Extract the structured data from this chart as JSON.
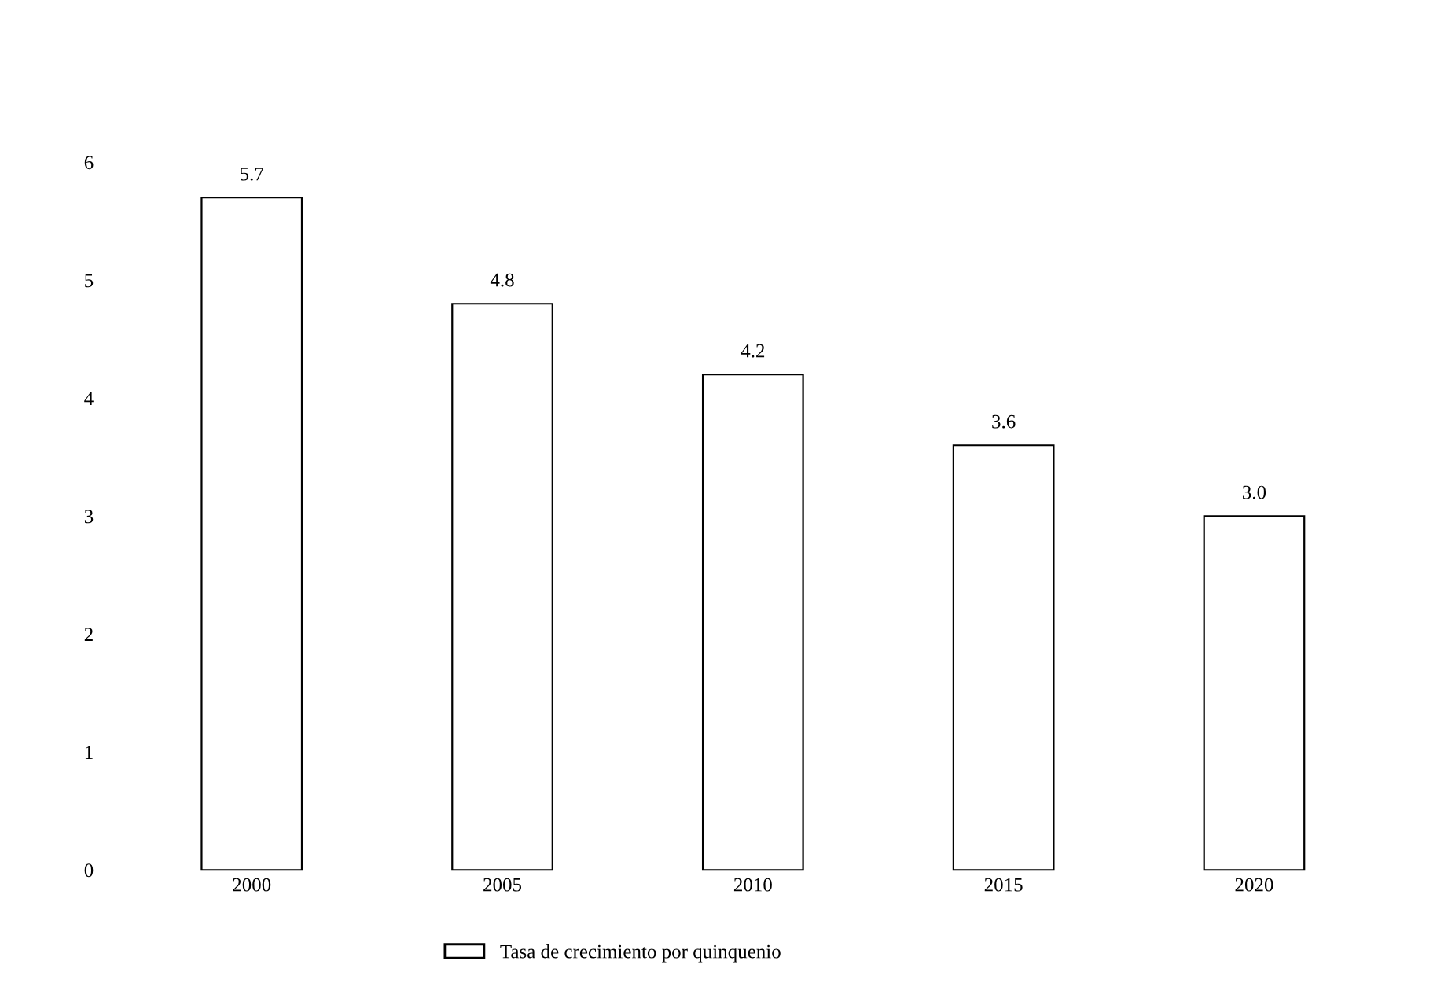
{
  "chart_data": {
    "type": "bar",
    "categories": [
      "2000",
      "2005",
      "2010",
      "2015",
      "2020"
    ],
    "series": [
      {
        "name": "Tasa de crecimiento por quinquenio",
        "color": "#ffffff",
        "values": [
          5.7,
          4.8,
          4.2,
          3.6,
          3.0
        ]
      }
    ],
    "value_labels": [
      "5.7",
      "4.8",
      "4.2",
      "3.6",
      "3.0"
    ],
    "ylim": [
      0,
      6
    ],
    "yticks": [
      0,
      1,
      2,
      3,
      4,
      5,
      6
    ],
    "grid": false,
    "legend": "bottom"
  }
}
